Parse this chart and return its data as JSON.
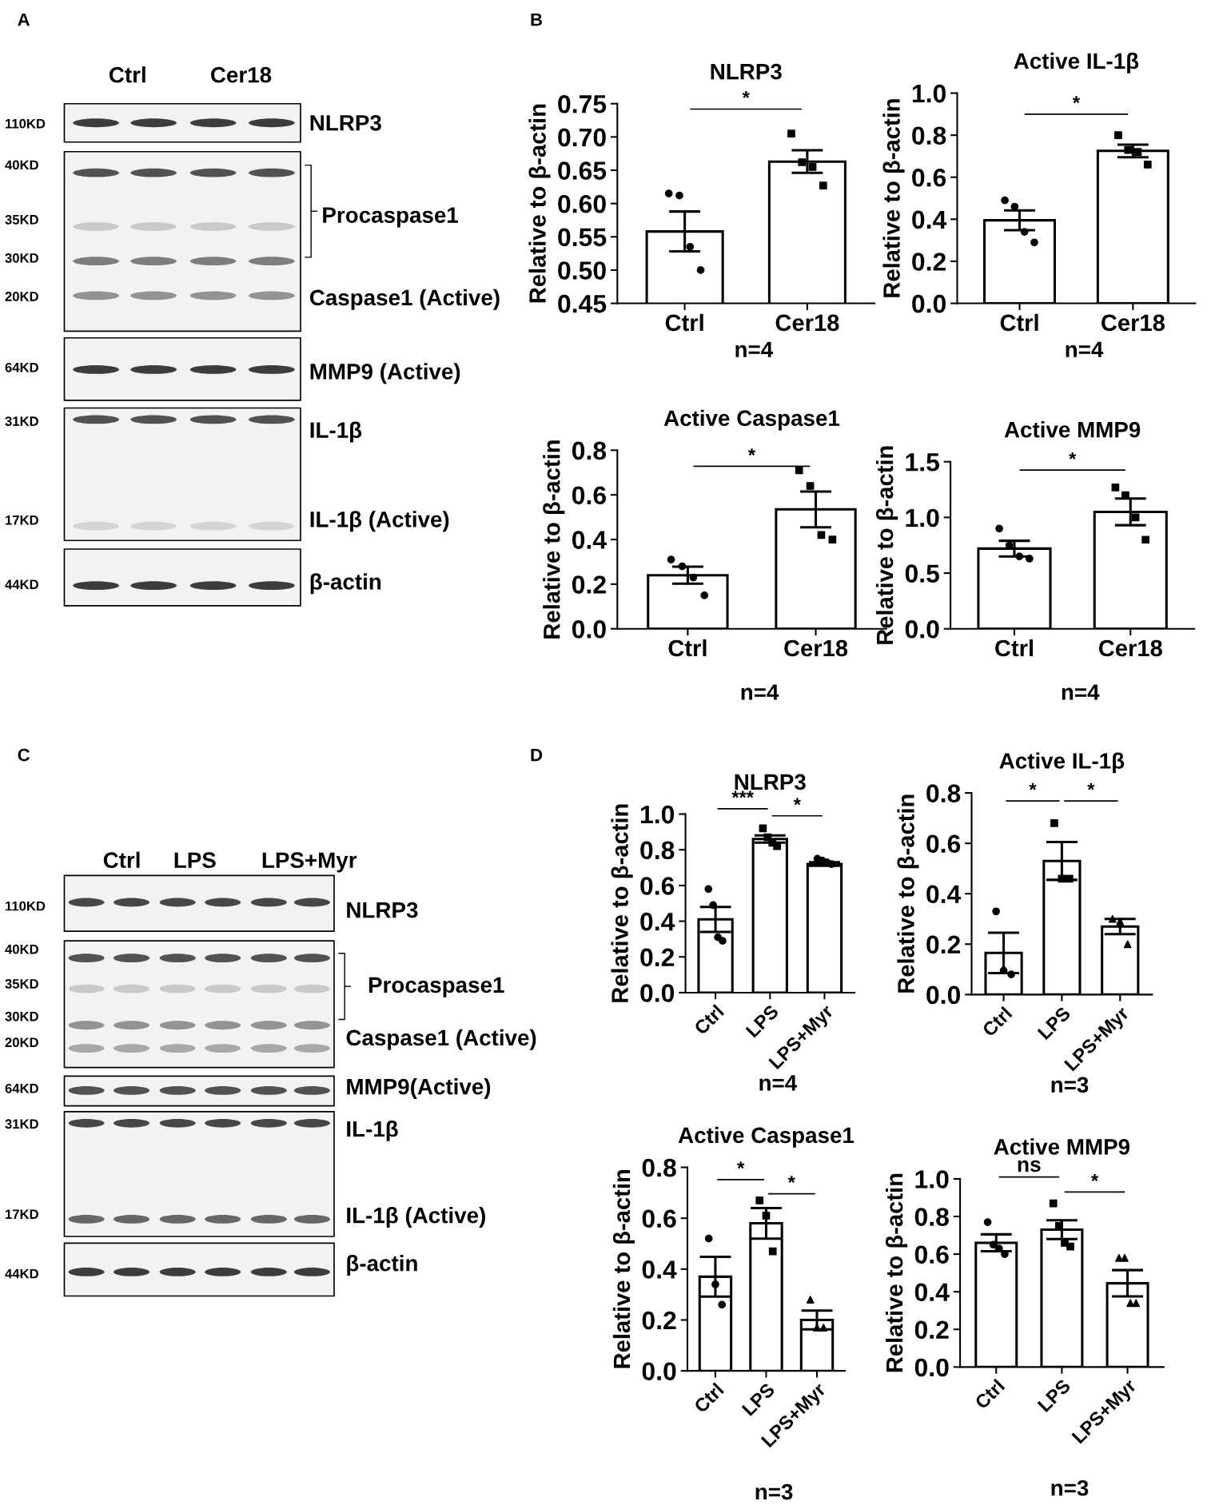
{
  "chart_data": [
    {
      "type": "other",
      "annotations": [
        "A",
        "Ctrl",
        "Cer18",
        "110KD",
        "40KD",
        "35KD",
        "30KD",
        "20KD",
        "64KD",
        "31KD",
        "17KD",
        "44KD",
        "NLRP3",
        "Procaspase1",
        "Caspase1 (Active)",
        "MMP9 (Active)",
        "IL-1β",
        "IL-1β (Active)",
        "β-actin"
      ]
    },
    {
      "type": "bar",
      "title": "NLRP3",
      "ylabel": "Relative to β-actin",
      "categories": [
        "Ctrl",
        "Cer18"
      ],
      "ylim": [
        0.45,
        0.75
      ],
      "yticks": [
        0.45,
        {
          "value": 0.5,
          "label": "0.50"
        },
        0.55,
        {
          "value": 0.6,
          "label": "0.60"
        },
        0.65,
        {
          "value": 0.7,
          "label": "0.70"
        },
        0.75
      ],
      "series": [
        {
          "type": "bar",
          "color": "#ffffff",
          "values": [
            0.558,
            0.663
          ],
          "errors": [
            0.03,
            0.017
          ]
        },
        {
          "type": "scatter",
          "color": "#000000",
          "marker": "circle",
          "x": [
            "Ctrl",
            "Ctrl",
            "Ctrl",
            "Ctrl"
          ],
          "values": [
            0.615,
            0.612,
            0.535,
            0.5
          ]
        },
        {
          "type": "scatter",
          "color": "#000000",
          "marker": "square",
          "x": [
            "Cer18",
            "Cer18",
            "Cer18",
            "Cer18"
          ],
          "values": [
            0.705,
            0.662,
            0.655,
            0.627
          ]
        }
      ],
      "annotations": [
        "B",
        "*",
        "n=4"
      ]
    },
    {
      "type": "bar",
      "title": "Active IL-1β",
      "ylabel": "Relative to β-actin",
      "categories": [
        "Ctrl",
        "Cer18"
      ],
      "ylim": [
        0,
        1.0
      ],
      "yticks": [
        {
          "value": 0,
          "label": "0.0"
        },
        0.2,
        0.4,
        0.6,
        0.8,
        {
          "value": 1.0,
          "label": "1.0"
        }
      ],
      "series": [
        {
          "type": "bar",
          "color": "#ffffff",
          "values": [
            0.395,
            0.725
          ],
          "errors": [
            0.047,
            0.03
          ]
        },
        {
          "type": "scatter",
          "color": "#000000",
          "marker": "circle",
          "x": [
            "Ctrl",
            "Ctrl",
            "Ctrl",
            "Ctrl"
          ],
          "values": [
            0.49,
            0.46,
            0.34,
            0.29
          ]
        },
        {
          "type": "scatter",
          "color": "#000000",
          "marker": "square",
          "x": [
            "Cer18",
            "Cer18",
            "Cer18",
            "Cer18"
          ],
          "values": [
            0.8,
            0.73,
            0.72,
            0.66
          ]
        }
      ],
      "annotations": [
        "*",
        "n=4"
      ]
    },
    {
      "type": "bar",
      "title": "Active Caspase1",
      "ylabel": "Relative to β-actin",
      "categories": [
        "Ctrl",
        "Cer18"
      ],
      "ylim": [
        0,
        0.8
      ],
      "yticks": [
        {
          "value": 0,
          "label": "0.0"
        },
        0.2,
        0.4,
        0.6,
        0.8
      ],
      "series": [
        {
          "type": "bar",
          "color": "#ffffff",
          "values": [
            0.24,
            0.535
          ],
          "errors": [
            0.038,
            0.08
          ]
        },
        {
          "type": "scatter",
          "color": "#000000",
          "marker": "circle",
          "x": [
            "Ctrl",
            "Ctrl",
            "Ctrl",
            "Ctrl"
          ],
          "values": [
            0.31,
            0.28,
            0.23,
            0.15
          ]
        },
        {
          "type": "scatter",
          "color": "#000000",
          "marker": "square",
          "x": [
            "Cer18",
            "Cer18",
            "Cer18",
            "Cer18"
          ],
          "values": [
            0.71,
            0.64,
            0.42,
            0.4
          ]
        }
      ],
      "annotations": [
        "*",
        "n=4"
      ]
    },
    {
      "type": "bar",
      "title": "Active MMP9",
      "ylabel": "Relative to β-actin",
      "categories": [
        "Ctrl",
        "Cer18"
      ],
      "ylim": [
        0,
        1.5
      ],
      "yticks": [
        {
          "value": 0,
          "label": "0.0"
        },
        0.5,
        {
          "value": 1.0,
          "label": "1.0"
        },
        1.5
      ],
      "series": [
        {
          "type": "bar",
          "color": "#ffffff",
          "values": [
            0.72,
            1.05
          ],
          "errors": [
            0.07,
            0.12
          ]
        },
        {
          "type": "scatter",
          "color": "#000000",
          "marker": "circle",
          "x": [
            "Ctrl",
            "Ctrl",
            "Ctrl",
            "Ctrl"
          ],
          "values": [
            0.9,
            0.75,
            0.65,
            0.63
          ]
        },
        {
          "type": "scatter",
          "color": "#000000",
          "marker": "square",
          "x": [
            "Cer18",
            "Cer18",
            "Cer18",
            "Cer18"
          ],
          "values": [
            1.27,
            1.2,
            1.0,
            0.8
          ]
        }
      ],
      "annotations": [
        "*",
        "n=4"
      ]
    },
    {
      "type": "other",
      "annotations": [
        "C",
        "Ctrl",
        "LPS",
        "LPS+Myr",
        "110KD",
        "40KD",
        "35KD",
        "30KD",
        "20KD",
        "64KD",
        "31KD",
        "17KD",
        "44KD",
        "NLRP3",
        "Procaspase1",
        "Caspase1 (Active)",
        "MMP9(Active)",
        "IL-1β",
        "IL-1β (Active)",
        "β-actin"
      ]
    },
    {
      "type": "bar",
      "title": "NLRP3",
      "ylabel": "Relative to β-actin",
      "categories": [
        "Ctrl",
        "LPS",
        "LPS+Myr"
      ],
      "ylim": [
        0,
        1.0
      ],
      "yticks": [
        {
          "value": 0,
          "label": "0.0"
        },
        0.2,
        0.4,
        0.6,
        0.8,
        {
          "value": 1.0,
          "label": "1.0"
        }
      ],
      "series": [
        {
          "type": "bar",
          "color": "#ffffff",
          "values": [
            0.41,
            0.86,
            0.72
          ],
          "errors": [
            0.07,
            0.02,
            0.01
          ]
        },
        {
          "type": "scatter",
          "color": "#000000",
          "marker": "circle",
          "x": [
            "Ctrl",
            "Ctrl",
            "Ctrl",
            "Ctrl"
          ],
          "values": [
            0.58,
            0.49,
            0.31,
            0.29
          ]
        },
        {
          "type": "scatter",
          "color": "#000000",
          "marker": "square",
          "x": [
            "LPS",
            "LPS",
            "LPS",
            "LPS"
          ],
          "values": [
            0.92,
            0.87,
            0.84,
            0.82
          ]
        },
        {
          "type": "scatter",
          "color": "#000000",
          "marker": "circle",
          "x": [
            "LPS+Myr",
            "LPS+Myr",
            "LPS+Myr",
            "LPS+Myr"
          ],
          "values": [
            0.75,
            0.74,
            0.73,
            0.72
          ]
        }
      ],
      "annotations": [
        "D",
        "***",
        "*",
        "n=4"
      ]
    },
    {
      "type": "bar",
      "title": "Active IL-1β",
      "ylabel": "Relative to β-actin",
      "categories": [
        "Ctrl",
        "LPS",
        "LPS+Myr"
      ],
      "ylim": [
        0,
        0.8
      ],
      "yticks": [
        {
          "value": 0,
          "label": "0.0"
        },
        0.2,
        0.4,
        0.6,
        0.8
      ],
      "series": [
        {
          "type": "bar",
          "color": "#ffffff",
          "values": [
            0.165,
            0.53,
            0.27
          ],
          "errors": [
            0.08,
            0.075,
            0.03
          ]
        },
        {
          "type": "scatter",
          "color": "#000000",
          "marker": "circle",
          "x": [
            "Ctrl",
            "Ctrl",
            "Ctrl"
          ],
          "values": [
            0.33,
            0.095,
            0.08
          ]
        },
        {
          "type": "scatter",
          "color": "#000000",
          "marker": "square",
          "x": [
            "LPS",
            "LPS",
            "LPS"
          ],
          "values": [
            0.68,
            0.46,
            0.46
          ]
        },
        {
          "type": "scatter",
          "color": "#000000",
          "marker": "triangle",
          "x": [
            "LPS+Myr",
            "LPS+Myr",
            "LPS+Myr"
          ],
          "values": [
            0.3,
            0.29,
            0.2
          ]
        }
      ],
      "annotations": [
        "*",
        "*",
        "n=3"
      ]
    },
    {
      "type": "bar",
      "title": "Active Caspase1",
      "ylabel": "Relative to β-actin",
      "categories": [
        "Ctrl",
        "LPS",
        "LPS+Myr"
      ],
      "ylim": [
        0,
        0.8
      ],
      "yticks": [
        {
          "value": 0,
          "label": "0.0"
        },
        0.2,
        0.4,
        0.6,
        0.8
      ],
      "series": [
        {
          "type": "bar",
          "color": "#ffffff",
          "values": [
            0.37,
            0.58,
            0.2
          ],
          "errors": [
            0.078,
            0.06,
            0.037
          ]
        },
        {
          "type": "scatter",
          "color": "#000000",
          "marker": "circle",
          "x": [
            "Ctrl",
            "Ctrl",
            "Ctrl"
          ],
          "values": [
            0.52,
            0.34,
            0.26
          ]
        },
        {
          "type": "scatter",
          "color": "#000000",
          "marker": "square",
          "x": [
            "LPS",
            "LPS",
            "LPS"
          ],
          "values": [
            0.67,
            0.61,
            0.47
          ]
        },
        {
          "type": "scatter",
          "color": "#000000",
          "marker": "triangle",
          "x": [
            "LPS+Myr",
            "LPS+Myr",
            "LPS+Myr"
          ],
          "values": [
            0.28,
            0.17,
            0.17
          ]
        }
      ],
      "annotations": [
        "*",
        "*",
        "n=3"
      ]
    },
    {
      "type": "bar",
      "title": "Active MMP9",
      "ylabel": "Relative to β-actin",
      "categories": [
        "Ctrl",
        "LPS",
        "LPS+Myr"
      ],
      "ylim": [
        0,
        1.0
      ],
      "yticks": [
        {
          "value": 0,
          "label": "0.0"
        },
        0.2,
        0.4,
        0.6,
        0.8,
        {
          "value": 1.0,
          "label": "1.0"
        }
      ],
      "series": [
        {
          "type": "bar",
          "color": "#ffffff",
          "values": [
            0.66,
            0.73,
            0.445
          ],
          "errors": [
            0.045,
            0.05,
            0.07
          ]
        },
        {
          "type": "scatter",
          "color": "#000000",
          "marker": "circle",
          "x": [
            "Ctrl",
            "Ctrl",
            "Ctrl",
            "Ctrl"
          ],
          "values": [
            0.77,
            0.65,
            0.63,
            0.6
          ]
        },
        {
          "type": "scatter",
          "color": "#000000",
          "marker": "square",
          "x": [
            "LPS",
            "LPS",
            "LPS",
            "LPS"
          ],
          "values": [
            0.87,
            0.75,
            0.66,
            0.64
          ]
        },
        {
          "type": "scatter",
          "color": "#000000",
          "marker": "triangle",
          "x": [
            "LPS+Myr",
            "LPS+Myr",
            "LPS+Myr",
            "LPS+Myr"
          ],
          "values": [
            0.58,
            0.58,
            0.34,
            0.34
          ]
        }
      ],
      "annotations": [
        "ns",
        "*",
        "n=3"
      ]
    }
  ]
}
